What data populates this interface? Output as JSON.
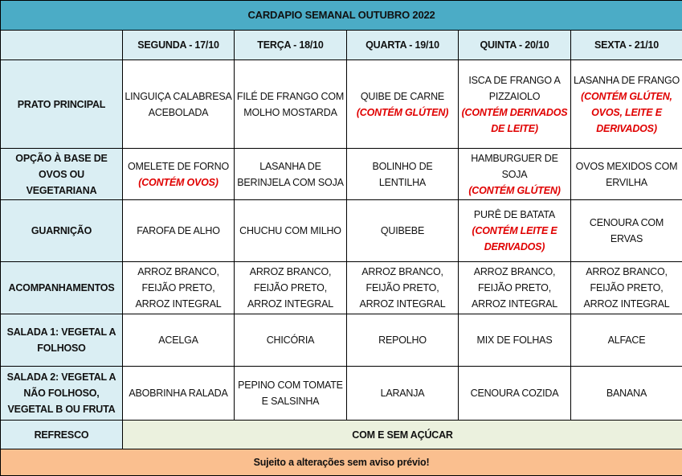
{
  "title": "CARDAPIO SEMANAL OUTUBRO 2022",
  "days": [
    "SEGUNDA - 17/10",
    "TERÇA - 18/10",
    "QUARTA - 19/10",
    "QUINTA - 20/10",
    "SEXTA - 21/10"
  ],
  "rows": [
    {
      "label": "PRATO PRINCIPAL",
      "cells": [
        {
          "text": "LINGUIÇA CALABRESA ACEBOLADA",
          "note": ""
        },
        {
          "text": "FILÉ DE FRANGO COM MOLHO MOSTARDA",
          "note": ""
        },
        {
          "text": "QUIBE DE CARNE",
          "note": "(CONTÉM GLÚTEN)"
        },
        {
          "text": "ISCA DE FRANGO A PIZZAIOLO",
          "note": "(CONTÉM DERIVADOS DE LEITE)"
        },
        {
          "text": "LASANHA DE FRANGO",
          "note": "(CONTÉM GLÚTEN, OVOS, LEITE E DERIVADOS)"
        }
      ]
    },
    {
      "label": "OPÇÃO À BASE DE OVOS OU VEGETARIANA",
      "cells": [
        {
          "text": "OMELETE DE FORNO",
          "note": "(CONTÉM OVOS)"
        },
        {
          "text": "LASANHA DE BERINJELA COM SOJA",
          "note": ""
        },
        {
          "text": "BOLINHO DE LENTILHA",
          "note": ""
        },
        {
          "text": "HAMBURGUER DE SOJA",
          "note": "(CONTÉM GLÚTEN)"
        },
        {
          "text": "OVOS MEXIDOS COM ERVILHA",
          "note": ""
        }
      ]
    },
    {
      "label": "GUARNIÇÃO",
      "cells": [
        {
          "text": "FAROFA DE ALHO",
          "note": ""
        },
        {
          "text": "CHUCHU COM MILHO",
          "note": ""
        },
        {
          "text": "QUIBEBE",
          "note": ""
        },
        {
          "text": "PURÊ DE BATATA",
          "note": "(CONTÉM LEITE E DERIVADOS)"
        },
        {
          "text": "CENOURA COM ERVAS",
          "note": ""
        }
      ]
    },
    {
      "label": "ACOMPANHAMENTOS",
      "cells": [
        {
          "text": "ARROZ BRANCO, FEIJÃO PRETO, ARROZ INTEGRAL",
          "note": ""
        },
        {
          "text": "ARROZ BRANCO, FEIJÃO PRETO, ARROZ INTEGRAL",
          "note": ""
        },
        {
          "text": "ARROZ BRANCO, FEIJÃO PRETO, ARROZ INTEGRAL",
          "note": ""
        },
        {
          "text": "ARROZ BRANCO, FEIJÃO PRETO, ARROZ INTEGRAL",
          "note": ""
        },
        {
          "text": "ARROZ BRANCO, FEIJÃO PRETO, ARROZ INTEGRAL",
          "note": ""
        }
      ]
    },
    {
      "label": "SALADA 1: VEGETAL A FOLHOSO",
      "cells": [
        {
          "text": "ACELGA",
          "note": ""
        },
        {
          "text": "CHICÓRIA",
          "note": ""
        },
        {
          "text": "REPOLHO",
          "note": ""
        },
        {
          "text": "MIX DE FOLHAS",
          "note": ""
        },
        {
          "text": "ALFACE",
          "note": ""
        }
      ]
    },
    {
      "label": "SALADA 2: VEGETAL A NÃO FOLHOSO, VEGETAL B OU FRUTA",
      "cells": [
        {
          "text": "ABOBRINHA RALADA",
          "note": ""
        },
        {
          "text": "PEPINO COM TOMATE E SALSINHA",
          "note": ""
        },
        {
          "text": "LARANJA",
          "note": ""
        },
        {
          "text": "CENOURA COZIDA",
          "note": ""
        },
        {
          "text": "BANANA",
          "note": ""
        }
      ]
    }
  ],
  "refresco": {
    "label": "REFRESCO",
    "value": "COM E SEM AÇÚCAR"
  },
  "footer": "Sujeito a alterações sem aviso prévio!",
  "colors": {
    "title": "#4bacc6",
    "header": "#daeef3",
    "refresco": "#ebf1de",
    "footer": "#fabf8f",
    "note": "#e00000"
  }
}
